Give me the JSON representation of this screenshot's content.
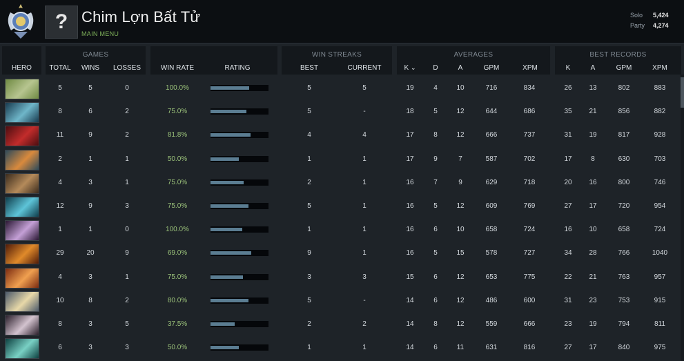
{
  "player": {
    "name": "Chim Lợn Bất Tử",
    "menu": "MAIN MENU",
    "avatar_glyph": "?",
    "solo_label": "Solo",
    "solo_mmr": "5,424",
    "party_label": "Party",
    "party_mmr": "4,274"
  },
  "groups": {
    "games": "GAMES",
    "win_streaks": "WIN STREAKS",
    "averages": "AVERAGES",
    "best_records": "BEST RECORDS"
  },
  "columns": {
    "hero": "HERO",
    "total": "TOTAL",
    "wins": "WINS",
    "losses": "LOSSES",
    "win_rate": "WIN RATE",
    "rating": "RATING",
    "best": "BEST",
    "current": "CURRENT",
    "k": "K",
    "d": "D",
    "a": "A",
    "gpm": "GPM",
    "xpm": "XPM",
    "best_k": "K",
    "best_a": "A",
    "best_gpm": "GPM",
    "best_xpm": "XPM",
    "sort_indicator": "⌄"
  },
  "rows": [
    {
      "colors": [
        "#6f8a43",
        "#b7c590"
      ],
      "total": "5",
      "wins": "5",
      "losses": "0",
      "win_rate": "100.0%",
      "rating": 0.67,
      "best": "5",
      "current": "5",
      "k": "19",
      "d": "4",
      "a": "10",
      "gpm": "716",
      "xpm": "834",
      "best_k": "26",
      "best_a": "13",
      "best_gpm": "802",
      "best_xpm": "883"
    },
    {
      "colors": [
        "#173a4e",
        "#6fb6c9"
      ],
      "total": "8",
      "wins": "6",
      "losses": "2",
      "win_rate": "75.0%",
      "rating": 0.62,
      "best": "5",
      "current": "-",
      "k": "18",
      "d": "5",
      "a": "12",
      "gpm": "644",
      "xpm": "686",
      "best_k": "35",
      "best_a": "21",
      "best_gpm": "856",
      "best_xpm": "882"
    },
    {
      "colors": [
        "#4a0d10",
        "#c22c2b"
      ],
      "total": "11",
      "wins": "9",
      "losses": "2",
      "win_rate": "81.8%",
      "rating": 0.69,
      "best": "4",
      "current": "4",
      "k": "17",
      "d": "8",
      "a": "12",
      "gpm": "666",
      "xpm": "737",
      "best_k": "31",
      "best_a": "19",
      "best_gpm": "817",
      "best_xpm": "928"
    },
    {
      "colors": [
        "#2d4a5a",
        "#d98a3d"
      ],
      "total": "2",
      "wins": "1",
      "losses": "1",
      "win_rate": "50.0%",
      "rating": 0.49,
      "best": "1",
      "current": "1",
      "k": "17",
      "d": "9",
      "a": "7",
      "gpm": "587",
      "xpm": "702",
      "best_k": "17",
      "best_a": "8",
      "best_gpm": "630",
      "best_xpm": "703"
    },
    {
      "colors": [
        "#3a2b1d",
        "#b48a5a"
      ],
      "total": "4",
      "wins": "3",
      "losses": "1",
      "win_rate": "75.0%",
      "rating": 0.57,
      "best": "2",
      "current": "1",
      "k": "16",
      "d": "7",
      "a": "9",
      "gpm": "629",
      "xpm": "718",
      "best_k": "20",
      "best_a": "16",
      "best_gpm": "800",
      "best_xpm": "746"
    },
    {
      "colors": [
        "#0f3d4b",
        "#5ec4d8"
      ],
      "total": "12",
      "wins": "9",
      "losses": "3",
      "win_rate": "75.0%",
      "rating": 0.66,
      "best": "5",
      "current": "1",
      "k": "16",
      "d": "5",
      "a": "12",
      "gpm": "609",
      "xpm": "769",
      "best_k": "27",
      "best_a": "17",
      "best_gpm": "720",
      "best_xpm": "954"
    },
    {
      "colors": [
        "#2a1733",
        "#c4a0d6"
      ],
      "total": "1",
      "wins": "1",
      "losses": "0",
      "win_rate": "100.0%",
      "rating": 0.55,
      "best": "1",
      "current": "1",
      "k": "16",
      "d": "6",
      "a": "10",
      "gpm": "658",
      "xpm": "724",
      "best_k": "16",
      "best_a": "10",
      "best_gpm": "658",
      "best_xpm": "724"
    },
    {
      "colors": [
        "#4e1a08",
        "#e08a2a"
      ],
      "total": "29",
      "wins": "20",
      "losses": "9",
      "win_rate": "69.0%",
      "rating": 0.7,
      "best": "9",
      "current": "1",
      "k": "16",
      "d": "5",
      "a": "15",
      "gpm": "578",
      "xpm": "727",
      "best_k": "34",
      "best_a": "28",
      "best_gpm": "766",
      "best_xpm": "1040"
    },
    {
      "colors": [
        "#7a2a10",
        "#f0a050"
      ],
      "total": "4",
      "wins": "3",
      "losses": "1",
      "win_rate": "75.0%",
      "rating": 0.56,
      "best": "3",
      "current": "3",
      "k": "15",
      "d": "6",
      "a": "12",
      "gpm": "653",
      "xpm": "775",
      "best_k": "22",
      "best_a": "21",
      "best_gpm": "763",
      "best_xpm": "957"
    },
    {
      "colors": [
        "#4c5a6a",
        "#e8d8a8"
      ],
      "total": "10",
      "wins": "8",
      "losses": "2",
      "win_rate": "80.0%",
      "rating": 0.65,
      "best": "5",
      "current": "-",
      "k": "14",
      "d": "6",
      "a": "12",
      "gpm": "486",
      "xpm": "600",
      "best_k": "31",
      "best_a": "23",
      "best_gpm": "753",
      "best_xpm": "915"
    },
    {
      "colors": [
        "#2a1e2a",
        "#d3c3cf"
      ],
      "total": "8",
      "wins": "3",
      "losses": "5",
      "win_rate": "37.5%",
      "rating": 0.42,
      "best": "2",
      "current": "2",
      "k": "14",
      "d": "8",
      "a": "12",
      "gpm": "559",
      "xpm": "666",
      "best_k": "23",
      "best_a": "19",
      "best_gpm": "794",
      "best_xpm": "811"
    },
    {
      "colors": [
        "#0d4040",
        "#79d0c4"
      ],
      "total": "6",
      "wins": "3",
      "losses": "3",
      "win_rate": "50.0%",
      "rating": 0.49,
      "best": "1",
      "current": "1",
      "k": "14",
      "d": "6",
      "a": "11",
      "gpm": "631",
      "xpm": "816",
      "best_k": "27",
      "best_a": "17",
      "best_gpm": "840",
      "best_xpm": "975"
    }
  ]
}
